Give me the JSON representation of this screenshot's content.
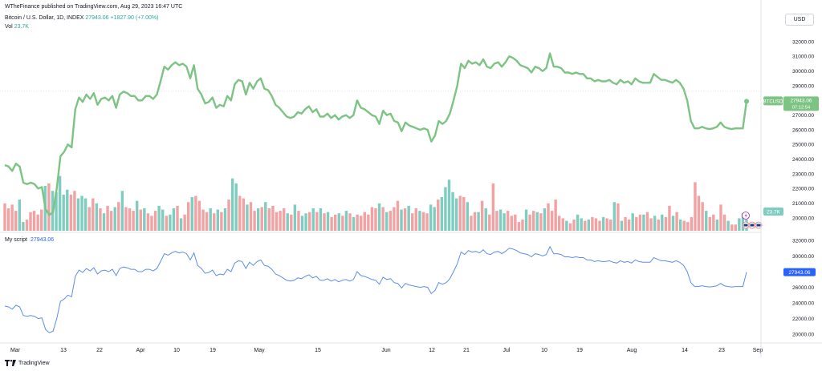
{
  "header": {
    "publisher": "WTheFinance published on TradingView.com, Aug 29, 2023 16:47 UTC",
    "symbol": "Bitcoin / U.S. Dollar, 1D, INDEX",
    "price": "27943.06",
    "change": "+1827.90 (+7.00%)",
    "vol_label": "Vol",
    "vol_value": "23.7K"
  },
  "currency_button": "USD",
  "price_tag": {
    "symbol": "BTCUSD",
    "value": "27943.06",
    "countdown": "07:12:54"
  },
  "vol_tag": "23.7K",
  "script": {
    "label": "My script",
    "value": "27943.06",
    "tag": "27943.06"
  },
  "footer": {
    "brand": "TradingView"
  },
  "colors": {
    "price_line": "#7dc383",
    "script_line": "#5b8def",
    "vol_up": "#7fcdc0",
    "vol_down": "#f2a2a2",
    "script_tag": "#2962ff",
    "price_tag": "#7dc383"
  },
  "chart_data": [
    {
      "type": "line",
      "title": "Bitcoin / U.S. Dollar, 1D, INDEX",
      "ylim": [
        19500,
        32500
      ],
      "y_ticks": [
        20000,
        21000,
        22000,
        23000,
        24000,
        25000,
        26000,
        27000,
        28000,
        29000,
        30000,
        31000,
        32000
      ],
      "y_tick_labels": [
        "20000.00",
        "21000.00",
        "22000.00",
        "23000.00",
        "24000.00",
        "25000.00",
        "26000.00",
        "27000.00",
        "28000.00",
        "29000.00",
        "30000.00",
        "31000.00",
        "32000.00"
      ],
      "x_ticks": [
        "Mar",
        "13",
        "22",
        "Apr",
        "10",
        "19",
        "May",
        "15",
        "Jun",
        "12",
        "21",
        "Jul",
        "10",
        "19",
        "Aug",
        "14",
        "23",
        "Sep"
      ],
      "grid": false,
      "series": [
        {
          "name": "BTCUSD",
          "values": [
            23600,
            23500,
            23200,
            23700,
            23500,
            22400,
            22300,
            22400,
            22300,
            22000,
            22100,
            20600,
            20200,
            20400,
            22000,
            24200,
            24500,
            25000,
            24800,
            27400,
            28200,
            27900,
            28400,
            28100,
            28500,
            27700,
            28100,
            28200,
            28000,
            28300,
            27500,
            28400,
            28600,
            28500,
            28300,
            28300,
            28000,
            28000,
            28300,
            28300,
            28100,
            28400,
            29300,
            30300,
            30100,
            30400,
            30600,
            30400,
            30500,
            30300,
            29500,
            30400,
            28800,
            28400,
            27800,
            27900,
            28200,
            27500,
            27700,
            27600,
            28300,
            28000,
            29100,
            29400,
            29300,
            28400,
            29200,
            28800,
            29300,
            29500,
            28800,
            28700,
            28300,
            27700,
            27500,
            27200,
            26900,
            26800,
            26900,
            27200,
            27100,
            27400,
            27600,
            27200,
            27400,
            26900,
            26900,
            27100,
            26800,
            27000,
            26700,
            26900,
            27000,
            26800,
            27000,
            28000,
            27500,
            27400,
            27200,
            27000,
            26900,
            26400,
            27300,
            27000,
            27100,
            26600,
            26500,
            25900,
            26500,
            26300,
            26200,
            26100,
            26000,
            26100,
            26000,
            25200,
            25600,
            26600,
            26400,
            26600,
            27100,
            28000,
            29000,
            30500,
            30200,
            30700,
            30500,
            30600,
            30400,
            30800,
            30300,
            30200,
            30500,
            30600,
            30300,
            30600,
            31000,
            30900,
            30700,
            30400,
            30300,
            30200,
            29900,
            30300,
            30200,
            30000,
            30200,
            31200,
            30300,
            30300,
            30200,
            29900,
            29900,
            29800,
            29900,
            29800,
            29800,
            29500,
            29500,
            29300,
            29400,
            29300,
            29300,
            29400,
            29200,
            29100,
            29400,
            29200,
            29300,
            29100,
            29500,
            29300,
            29200,
            29200,
            29200,
            29800,
            29600,
            29400,
            29400,
            29300,
            29200,
            29400,
            29200,
            28800,
            28000,
            26600,
            26100,
            26100,
            26200,
            26100,
            26050,
            26100,
            26200,
            26500,
            26200,
            26100,
            26050,
            26100,
            26100,
            26100,
            27943
          ]
        }
      ]
    },
    {
      "type": "bar",
      "title": "Vol",
      "values": [
        2.2,
        1.8,
        2.1,
        1.6,
        2.5,
        0.7,
        0.9,
        1.5,
        1.6,
        1.3,
        1.7,
        3.6,
        3.8,
        3.2,
        3.1,
        4.4,
        2.9,
        3.3,
        2.9,
        3.2,
        2.6,
        2.8,
        2.6,
        1.9,
        2.6,
        2.2,
        1.8,
        1.4,
        2.0,
        1.6,
        1.9,
        2.3,
        3.2,
        1.9,
        1.8,
        1.6,
        2.4,
        1.7,
        1.8,
        1.4,
        1.2,
        1.6,
        2.0,
        1.7,
        1.2,
        1.3,
        1.8,
        2.0,
        1.0,
        1.3,
        2.3,
        2.7,
        2.8,
        2.4,
        1.7,
        1.5,
        1.8,
        1.4,
        1.7,
        1.5,
        1.8,
        2.5,
        4.2,
        3.8,
        2.8,
        2.6,
        2.1,
        2.3,
        1.6,
        1.8,
        1.9,
        2.3,
        1.8,
        2.0,
        1.5,
        1.6,
        1.8,
        1.4,
        1.3,
        2.1,
        1.6,
        1.2,
        1.4,
        1.5,
        1.8,
        1.5,
        1.8,
        1.4,
        1.5,
        1.1,
        1.3,
        1.4,
        1.2,
        1.6,
        1.4,
        1.1,
        1.3,
        1.2,
        1.5,
        1.3,
        1.9,
        1.8,
        2.2,
        1.9,
        1.5,
        1.6,
        1.9,
        2.4,
        1.7,
        1.8,
        2.0,
        1.4,
        1.8,
        1.6,
        1.5,
        1.4,
        2.1,
        1.9,
        2.5,
        2.7,
        3.5,
        4.1,
        3.1,
        2.6,
        2.8,
        2.7,
        2.3,
        1.2,
        1.5,
        1.5,
        2.4,
        1.8,
        1.3,
        3.8,
        1.6,
        1.7,
        1.4,
        1.6,
        1.2,
        1.3,
        0.7,
        0.9,
        1.7,
        1.3,
        1.6,
        1.5,
        1.4,
        1.8,
        2.2,
        1.6,
        2.5,
        1.2,
        1.0,
        0.8,
        0.6,
        0.9,
        1.3,
        1.0,
        0.8,
        0.9,
        1.1,
        1.0,
        0.8,
        1.1,
        1.0,
        0.9,
        2.3,
        2.2,
        0.8,
        1.1,
        0.9,
        1.4,
        1.1,
        1.3,
        1.3,
        1.5,
        1.0,
        1.2,
        0.9,
        1.3,
        1.1,
        2.0,
        1.2,
        1.5,
        0.9,
        0.8,
        0.7,
        1.1,
        3.9,
        2.8,
        2.3,
        1.6,
        1.1,
        1.3,
        0.9,
        2.1,
        1.3,
        0.8,
        0.5,
        0.5,
        1.0,
        1.4,
        0.9
      ],
      "colors_up": [
        false,
        false,
        false,
        false,
        true,
        true,
        false,
        false,
        false,
        false,
        false,
        true,
        false,
        true,
        true,
        true,
        true,
        true,
        false,
        false,
        true,
        true,
        true,
        false,
        false,
        true,
        false,
        true,
        false,
        false,
        true,
        false,
        true,
        false,
        false,
        false,
        true,
        false,
        true,
        false,
        false,
        false,
        true,
        true,
        false,
        true,
        true,
        false,
        true,
        false,
        false,
        true,
        false,
        false,
        false,
        false,
        true,
        false,
        true,
        false,
        true,
        false,
        true,
        true,
        false,
        false,
        true,
        false,
        false,
        true,
        false,
        true,
        false,
        false,
        false,
        false,
        false,
        true,
        false,
        true,
        false,
        true,
        true,
        false,
        true,
        false,
        true,
        false,
        true,
        false,
        false,
        true,
        false,
        true,
        false,
        true,
        false,
        false,
        false,
        false,
        false,
        false,
        true,
        false,
        true,
        false,
        false,
        false,
        true,
        false,
        true,
        false,
        false,
        true,
        false,
        false,
        true,
        true,
        false,
        true,
        true,
        true,
        true,
        true,
        false,
        false,
        true,
        false,
        false,
        true,
        false,
        true,
        false,
        false,
        false,
        true,
        true,
        false,
        false,
        false,
        false,
        false,
        true,
        false,
        false,
        true,
        false,
        true,
        false,
        false,
        false,
        false,
        false,
        true,
        false,
        false,
        true,
        true,
        false,
        true,
        false,
        false,
        false,
        true,
        false,
        false,
        true,
        false,
        true,
        false,
        false,
        true,
        false,
        false,
        true,
        false,
        false,
        true,
        false,
        true,
        false,
        false,
        true,
        false,
        true,
        false,
        false,
        false,
        false,
        false,
        false,
        true,
        false,
        false,
        true,
        false,
        false,
        true,
        false,
        false,
        true,
        true,
        true
      ]
    }
  ]
}
